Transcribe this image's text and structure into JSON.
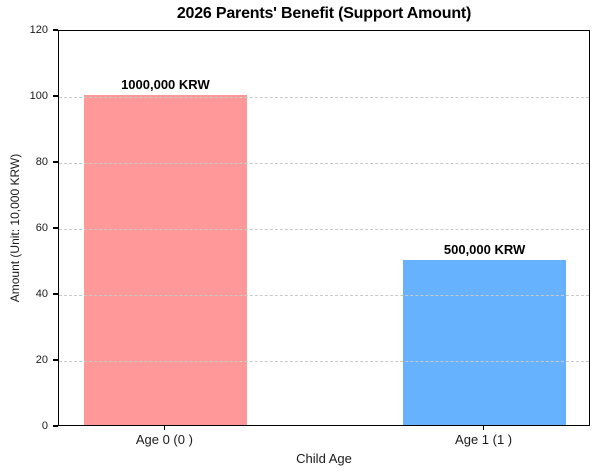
{
  "chart_data": {
    "type": "bar",
    "title": "2026 Parents' Benefit (Support Amount)",
    "xlabel": "Child Age",
    "ylabel": "Amount (Unit: 10,000 KRW)",
    "categories": [
      "Age 0 (0 )",
      "Age 1 (1 )"
    ],
    "values": [
      100,
      50
    ],
    "bar_labels": [
      "1000,000 KRW",
      "500,000 KRW"
    ],
    "bar_colors": [
      "#FF9999",
      "#66B2FF"
    ],
    "ylim": [
      0,
      120
    ],
    "yticks": [
      0,
      20,
      40,
      60,
      80,
      100,
      120
    ],
    "grid": "horizontal-dashed-over-bars",
    "legend": "none"
  }
}
